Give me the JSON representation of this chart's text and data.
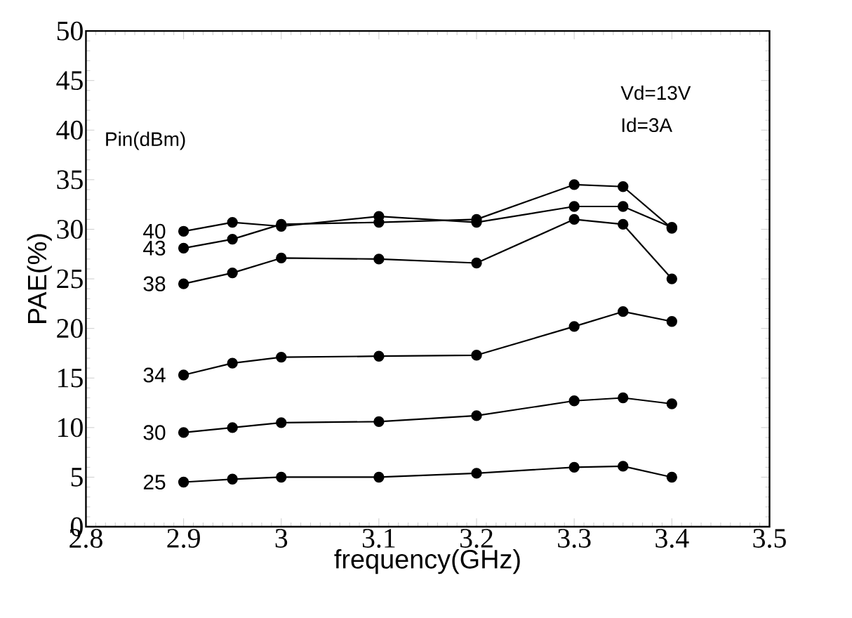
{
  "chart_data": {
    "type": "line",
    "xlabel": "frequency(GHz)",
    "ylabel": "PAE(%)",
    "legend_title": "Pin(dBm)",
    "annotations": [
      "Vd=13V",
      "Id=3A"
    ],
    "x": [
      2.9,
      2.95,
      3.0,
      3.1,
      3.2,
      3.3,
      3.35,
      3.4
    ],
    "xlim": [
      2.8,
      3.5
    ],
    "xticks": [
      2.8,
      2.9,
      {
        "value": 3.0,
        "label": "3"
      },
      3.1,
      3.2,
      3.3,
      3.4,
      3.5
    ],
    "ylim": [
      0,
      50
    ],
    "yticks": [
      0,
      5,
      10,
      15,
      20,
      25,
      30,
      35,
      40,
      45,
      50
    ],
    "marker": "circle",
    "line_style": "solid",
    "grid": false,
    "series": [
      {
        "name": "40",
        "color": "#000000",
        "values": [
          29.8,
          30.7,
          30.3,
          31.3,
          30.7,
          32.3,
          32.3,
          30.2
        ]
      },
      {
        "name": "43",
        "color": "#000000",
        "values": [
          28.1,
          29.0,
          30.5,
          30.7,
          31.0,
          34.5,
          34.3,
          30.1
        ]
      },
      {
        "name": "38",
        "color": "#000000",
        "values": [
          24.5,
          25.6,
          27.1,
          27.0,
          26.6,
          31.0,
          30.5,
          25.0
        ]
      },
      {
        "name": "34",
        "color": "#000000",
        "values": [
          15.3,
          16.5,
          17.1,
          17.2,
          17.3,
          20.2,
          21.7,
          20.7
        ]
      },
      {
        "name": "30",
        "color": "#000000",
        "values": [
          9.5,
          10.0,
          10.5,
          10.6,
          11.2,
          12.7,
          13.0,
          12.4
        ]
      },
      {
        "name": "25",
        "color": "#000000",
        "values": [
          4.5,
          4.8,
          5.0,
          5.0,
          5.4,
          6.0,
          6.1,
          5.0
        ]
      }
    ]
  }
}
